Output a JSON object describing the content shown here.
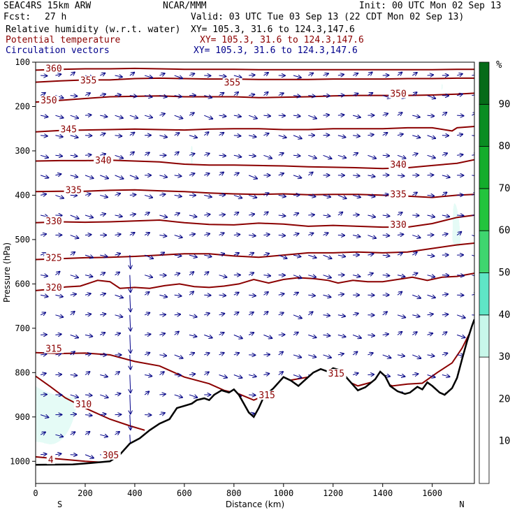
{
  "header": {
    "model": "SEAC4RS 15km ARW",
    "center": "NCAR/MMM",
    "init": "Init: 00 UTC Mon 02 Sep 13",
    "fcst_label": "Fcst:",
    "fcst_value": "27 h",
    "valid": "Valid: 03 UTC Tue 03 Sep 13 (22 CDT Mon 02 Sep 13)",
    "fields": [
      {
        "name": "Relative humidity (w.r.t. water)",
        "xy": "XY= 105.3, 31.6 to 124.3,147.6",
        "color": "#000000"
      },
      {
        "name": "Potential temperature",
        "xy": "XY= 105.3, 31.6 to 124.3,147.6",
        "color": "#8b0000"
      },
      {
        "name": "Circulation vectors",
        "xy": "XY= 105.3, 31.6 to 124.3,147.6",
        "color": "#00008b"
      }
    ]
  },
  "chart_data": {
    "type": "heatmap",
    "xlabel": "Distance (km)",
    "ylabel": "Pressure (hPa)",
    "xlim": [
      0,
      1770
    ],
    "ylim": [
      1050,
      100
    ],
    "x_ticks": [
      0,
      200,
      400,
      600,
      800,
      1000,
      1200,
      1400,
      1600
    ],
    "y_ticks": [
      100,
      200,
      300,
      400,
      500,
      600,
      700,
      800,
      900,
      1000
    ],
    "x_end_labels": {
      "left": "S",
      "right": "N"
    },
    "colorbar": {
      "unit": "%",
      "labels": [
        10,
        20,
        30,
        40,
        50,
        60,
        70,
        80,
        90
      ],
      "bins": [
        {
          "from": 0,
          "to": 30,
          "color": "#ffffff"
        },
        {
          "from": 30,
          "to": 40,
          "color": "#c8f7ea"
        },
        {
          "from": 40,
          "to": 50,
          "color": "#5fe6c6"
        },
        {
          "from": 50,
          "to": 60,
          "color": "#3fd66f"
        },
        {
          "from": 60,
          "to": 70,
          "color": "#23c43d"
        },
        {
          "from": 70,
          "to": 80,
          "color": "#14ad2c"
        },
        {
          "from": 80,
          "to": 90,
          "color": "#0a8d22"
        },
        {
          "from": 90,
          "to": 100,
          "color": "#056b18"
        }
      ]
    },
    "terrain": [
      [
        0,
        1008
      ],
      [
        150,
        1007
      ],
      [
        200,
        1005
      ],
      [
        300,
        1000
      ],
      [
        340,
        985
      ],
      [
        380,
        960
      ],
      [
        420,
        948
      ],
      [
        460,
        930
      ],
      [
        500,
        915
      ],
      [
        540,
        905
      ],
      [
        570,
        880
      ],
      [
        600,
        875
      ],
      [
        630,
        870
      ],
      [
        650,
        862
      ],
      [
        680,
        858
      ],
      [
        700,
        862
      ],
      [
        720,
        850
      ],
      [
        750,
        840
      ],
      [
        780,
        845
      ],
      [
        800,
        838
      ],
      [
        820,
        850
      ],
      [
        840,
        870
      ],
      [
        860,
        890
      ],
      [
        880,
        900
      ],
      [
        900,
        880
      ],
      [
        920,
        855
      ],
      [
        960,
        835
      ],
      [
        1000,
        810
      ],
      [
        1030,
        818
      ],
      [
        1060,
        830
      ],
      [
        1090,
        815
      ],
      [
        1120,
        800
      ],
      [
        1150,
        792
      ],
      [
        1180,
        798
      ],
      [
        1200,
        790
      ],
      [
        1230,
        795
      ],
      [
        1260,
        815
      ],
      [
        1300,
        840
      ],
      [
        1330,
        833
      ],
      [
        1370,
        815
      ],
      [
        1390,
        798
      ],
      [
        1410,
        808
      ],
      [
        1430,
        830
      ],
      [
        1460,
        842
      ],
      [
        1490,
        848
      ],
      [
        1510,
        845
      ],
      [
        1540,
        832
      ],
      [
        1560,
        838
      ],
      [
        1580,
        822
      ],
      [
        1600,
        830
      ],
      [
        1630,
        845
      ],
      [
        1650,
        850
      ],
      [
        1680,
        835
      ],
      [
        1700,
        812
      ],
      [
        1720,
        770
      ],
      [
        1740,
        730
      ],
      [
        1760,
        695
      ],
      [
        1770,
        680
      ]
    ],
    "theta_contours": [
      {
        "value": 305,
        "points": [
          [
            0,
            990
          ],
          [
            100,
            995
          ],
          [
            200,
            1000
          ],
          [
            300,
            1003
          ]
        ]
      },
      {
        "value": 310,
        "points": [
          [
            0,
            808
          ],
          [
            60,
            832
          ],
          [
            120,
            857
          ],
          [
            200,
            880
          ],
          [
            300,
            905
          ],
          [
            380,
            920
          ],
          [
            440,
            930
          ]
        ]
      },
      {
        "value": 315,
        "points": [
          [
            0,
            755
          ],
          [
            100,
            757
          ],
          [
            200,
            756
          ],
          [
            300,
            760
          ],
          [
            400,
            775
          ],
          [
            500,
            785
          ],
          [
            560,
            800
          ],
          [
            600,
            810
          ],
          [
            700,
            825
          ],
          [
            760,
            840
          ],
          [
            820,
            848
          ],
          [
            880,
            862
          ],
          [
            940,
            848
          ],
          [
            1000,
            820
          ],
          [
            1100,
            810
          ],
          [
            1180,
            800
          ],
          [
            1240,
            815
          ],
          [
            1300,
            830
          ],
          [
            1380,
            818
          ],
          [
            1440,
            830
          ],
          [
            1500,
            826
          ],
          [
            1560,
            824
          ],
          [
            1620,
            800
          ],
          [
            1680,
            778
          ],
          [
            1720,
            745
          ],
          [
            1770,
            690
          ]
        ]
      },
      {
        "value": 320,
        "points": [
          [
            0,
            615
          ],
          [
            60,
            612
          ],
          [
            120,
            607
          ],
          [
            180,
            605
          ],
          [
            250,
            592
          ],
          [
            300,
            595
          ],
          [
            340,
            610
          ],
          [
            400,
            608
          ],
          [
            460,
            610
          ],
          [
            520,
            604
          ],
          [
            580,
            600
          ],
          [
            640,
            606
          ],
          [
            700,
            608
          ],
          [
            760,
            605
          ],
          [
            820,
            600
          ],
          [
            880,
            590
          ],
          [
            940,
            598
          ],
          [
            1000,
            590
          ],
          [
            1060,
            586
          ],
          [
            1120,
            588
          ],
          [
            1180,
            592
          ],
          [
            1220,
            598
          ],
          [
            1280,
            592
          ],
          [
            1340,
            595
          ],
          [
            1400,
            595
          ],
          [
            1460,
            590
          ],
          [
            1520,
            585
          ],
          [
            1580,
            592
          ],
          [
            1640,
            585
          ],
          [
            1700,
            583
          ],
          [
            1770,
            576
          ]
        ]
      },
      {
        "value": 325,
        "points": [
          [
            0,
            545
          ],
          [
            100,
            543
          ],
          [
            200,
            541
          ],
          [
            300,
            540
          ],
          [
            400,
            538
          ],
          [
            500,
            535
          ],
          [
            600,
            532
          ],
          [
            700,
            532
          ],
          [
            800,
            537
          ],
          [
            900,
            540
          ],
          [
            1000,
            535
          ],
          [
            1100,
            530
          ],
          [
            1200,
            530
          ],
          [
            1300,
            528
          ],
          [
            1400,
            530
          ],
          [
            1500,
            528
          ],
          [
            1600,
            520
          ],
          [
            1700,
            512
          ],
          [
            1770,
            508
          ]
        ]
      },
      {
        "value": 330,
        "points": [
          [
            0,
            462
          ],
          [
            100,
            460
          ],
          [
            200,
            461
          ],
          [
            300,
            460
          ],
          [
            400,
            458
          ],
          [
            500,
            456
          ],
          [
            600,
            462
          ],
          [
            700,
            466
          ],
          [
            800,
            467
          ],
          [
            900,
            463
          ],
          [
            1000,
            465
          ],
          [
            1100,
            470
          ],
          [
            1200,
            468
          ],
          [
            1300,
            470
          ],
          [
            1400,
            472
          ],
          [
            1500,
            472
          ],
          [
            1600,
            464
          ],
          [
            1700,
            450
          ],
          [
            1770,
            445
          ]
        ]
      },
      {
        "value": 335,
        "points": [
          [
            0,
            392
          ],
          [
            100,
            391
          ],
          [
            200,
            391
          ],
          [
            300,
            389
          ],
          [
            400,
            388
          ],
          [
            500,
            390
          ],
          [
            600,
            392
          ],
          [
            700,
            395
          ],
          [
            800,
            397
          ],
          [
            900,
            398
          ],
          [
            1000,
            397
          ],
          [
            1100,
            399
          ],
          [
            1200,
            398
          ],
          [
            1300,
            398
          ],
          [
            1400,
            400
          ],
          [
            1500,
            402
          ],
          [
            1600,
            405
          ],
          [
            1700,
            400
          ],
          [
            1770,
            398
          ]
        ]
      },
      {
        "value": 340,
        "points": [
          [
            0,
            323
          ],
          [
            100,
            322
          ],
          [
            200,
            322
          ],
          [
            300,
            321
          ],
          [
            400,
            323
          ],
          [
            500,
            325
          ],
          [
            600,
            330
          ],
          [
            700,
            332
          ],
          [
            800,
            332
          ],
          [
            900,
            333
          ],
          [
            1000,
            334
          ],
          [
            1100,
            336
          ],
          [
            1200,
            337
          ],
          [
            1300,
            338
          ],
          [
            1400,
            340
          ],
          [
            1500,
            338
          ],
          [
            1600,
            333
          ],
          [
            1700,
            328
          ],
          [
            1770,
            320
          ]
        ]
      },
      {
        "value": 345,
        "points": [
          [
            0,
            257
          ],
          [
            100,
            254
          ],
          [
            200,
            253
          ],
          [
            300,
            252
          ],
          [
            400,
            251
          ],
          [
            500,
            252
          ],
          [
            600,
            253
          ],
          [
            700,
            251
          ],
          [
            800,
            250
          ],
          [
            900,
            250
          ],
          [
            1000,
            252
          ],
          [
            1100,
            252
          ],
          [
            1200,
            250
          ],
          [
            1300,
            250
          ],
          [
            1400,
            250
          ],
          [
            1500,
            248
          ],
          [
            1600,
            248
          ],
          [
            1680,
            255
          ],
          [
            1700,
            248
          ],
          [
            1770,
            245
          ]
        ]
      },
      {
        "value": 350,
        "points": [
          [
            0,
            190
          ],
          [
            100,
            186
          ],
          [
            200,
            182
          ],
          [
            300,
            178
          ],
          [
            400,
            177
          ],
          [
            500,
            176
          ],
          [
            600,
            178
          ],
          [
            700,
            178
          ],
          [
            800,
            178
          ],
          [
            900,
            180
          ],
          [
            1000,
            179
          ],
          [
            1100,
            178
          ],
          [
            1200,
            176
          ],
          [
            1300,
            175
          ],
          [
            1400,
            175
          ],
          [
            1500,
            175
          ],
          [
            1600,
            174
          ],
          [
            1700,
            172
          ],
          [
            1770,
            170
          ]
        ]
      },
      {
        "value": 355,
        "points": [
          [
            0,
            145
          ],
          [
            100,
            142
          ],
          [
            200,
            140
          ],
          [
            300,
            140
          ],
          [
            400,
            137
          ],
          [
            500,
            136
          ],
          [
            600,
            137
          ],
          [
            700,
            138
          ],
          [
            800,
            138
          ],
          [
            900,
            139
          ],
          [
            1000,
            139
          ],
          [
            1100,
            139
          ],
          [
            1200,
            138
          ],
          [
            1300,
            138
          ],
          [
            1400,
            138
          ],
          [
            1500,
            137
          ],
          [
            1600,
            137
          ],
          [
            1700,
            136
          ],
          [
            1770,
            136
          ]
        ]
      },
      {
        "value": 360,
        "points": [
          [
            0,
            118
          ],
          [
            100,
            116
          ],
          [
            200,
            115
          ],
          [
            300,
            115
          ],
          [
            400,
            114
          ],
          [
            500,
            115
          ],
          [
            600,
            116
          ],
          [
            700,
            116
          ],
          [
            800,
            116
          ],
          [
            900,
            117
          ],
          [
            1000,
            117
          ],
          [
            1100,
            117
          ],
          [
            1200,
            117
          ],
          [
            1300,
            117
          ],
          [
            1400,
            117
          ],
          [
            1500,
            117
          ],
          [
            1600,
            117
          ],
          [
            1700,
            116
          ],
          [
            1770,
            116
          ]
        ]
      }
    ],
    "theta_labels": [
      {
        "text": "360",
        "x": 40,
        "p": 118
      },
      {
        "text": "355",
        "x": 180,
        "p": 145
      },
      {
        "text": "355",
        "x": 760,
        "p": 150
      },
      {
        "text": "350",
        "x": 20,
        "p": 190
      },
      {
        "text": "350",
        "x": 1430,
        "p": 175
      },
      {
        "text": "345",
        "x": 100,
        "p": 255
      },
      {
        "text": "340",
        "x": 240,
        "p": 325
      },
      {
        "text": "340",
        "x": 1430,
        "p": 335
      },
      {
        "text": "335",
        "x": 120,
        "p": 392
      },
      {
        "text": "335",
        "x": 1430,
        "p": 402
      },
      {
        "text": "330",
        "x": 40,
        "p": 462
      },
      {
        "text": "330",
        "x": 1430,
        "p": 470
      },
      {
        "text": "325",
        "x": 40,
        "p": 545
      },
      {
        "text": "320",
        "x": 40,
        "p": 612
      },
      {
        "text": "315",
        "x": 40,
        "p": 750
      },
      {
        "text": "315",
        "x": 1180,
        "p": 806
      },
      {
        "text": "315",
        "x": 900,
        "p": 855
      },
      {
        "text": "310",
        "x": 160,
        "p": 875
      },
      {
        "text": "305",
        "x": 270,
        "p": 990
      },
      {
        "text": "4",
        "x": 50,
        "p": 1000
      }
    ]
  }
}
